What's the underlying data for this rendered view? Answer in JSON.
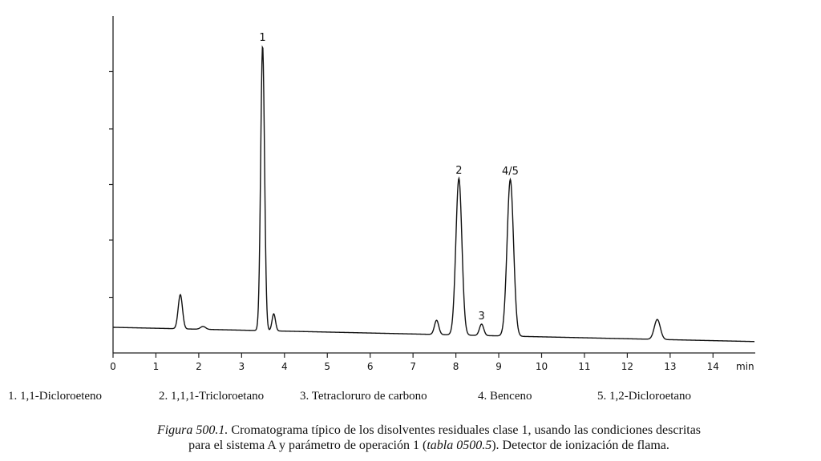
{
  "chart_data": {
    "type": "line",
    "title": "",
    "xlabel": "",
    "ylabel": "",
    "x_unit_label": "min",
    "xlim": [
      0,
      15
    ],
    "xticks": [
      0,
      1,
      2,
      3,
      4,
      5,
      6,
      7,
      8,
      9,
      10,
      11,
      12,
      13,
      14
    ],
    "xtick_labels": [
      "0",
      "1",
      "2",
      "3",
      "4",
      "5",
      "6",
      "7",
      "8",
      "9",
      "10",
      "11",
      "12",
      "13",
      "14"
    ],
    "y_axis_labels": "none",
    "grid": false,
    "baseline": {
      "start": 0.09,
      "end": 0.04
    },
    "peaks": [
      {
        "rt": 1.57,
        "height": 0.12,
        "width": 0.05,
        "label": ""
      },
      {
        "rt": 2.1,
        "height": 0.01,
        "width": 0.06,
        "label": ""
      },
      {
        "rt": 3.49,
        "height": 1.0,
        "width": 0.045,
        "label": "1"
      },
      {
        "rt": 3.75,
        "height": 0.06,
        "width": 0.04,
        "label": ""
      },
      {
        "rt": 7.55,
        "height": 0.05,
        "width": 0.05,
        "label": ""
      },
      {
        "rt": 8.07,
        "height": 0.55,
        "width": 0.07,
        "label": "2"
      },
      {
        "rt": 8.6,
        "height": 0.04,
        "width": 0.05,
        "label": "3"
      },
      {
        "rt": 9.27,
        "height": 0.55,
        "width": 0.075,
        "label": "4/5"
      },
      {
        "rt": 12.7,
        "height": 0.07,
        "width": 0.07,
        "label": ""
      }
    ]
  },
  "legend": [
    "1. 1,1-Dicloroeteno",
    "2. 1,1,1-Tricloroetano",
    "3. Tetracloruro de carbono",
    "4. Benceno",
    "5. 1,2-Dicloroetano"
  ],
  "caption": {
    "figure_label": "Figura 500.1.",
    "line1": " Cromatograma típico de los disolventes residuales clase 1, usando las condiciones descritas",
    "line2_a": "para el sistema A  y parámetro de operación 1 (",
    "line2_ref": "tabla 0500.5",
    "line2_b": "). Detector de ionización de flama."
  }
}
